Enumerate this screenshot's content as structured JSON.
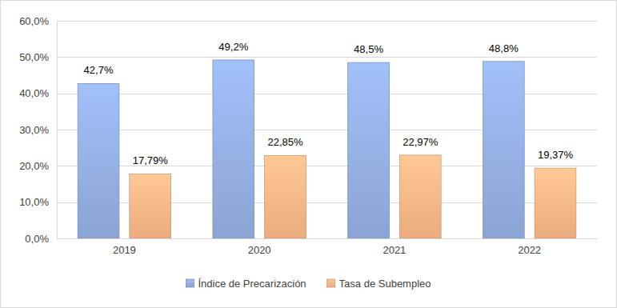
{
  "chart_data": {
    "type": "bar",
    "categories": [
      "2019",
      "2020",
      "2021",
      "2022"
    ],
    "series": [
      {
        "name": "Índice de Precarización",
        "color": "#8faadc",
        "values": [
          42.7,
          49.2,
          48.5,
          48.8
        ],
        "value_labels": [
          "42,7%",
          "49,2%",
          "48,5%",
          "48,8%"
        ]
      },
      {
        "name": "Tasa de Subempleo",
        "color": "#f4b183",
        "values": [
          17.79,
          22.85,
          22.97,
          19.37
        ],
        "value_labels": [
          "17,79%",
          "22,85%",
          "22,97%",
          "19,37%"
        ]
      }
    ],
    "ylim": [
      0,
      60
    ],
    "yticks": [
      {
        "value": 0,
        "label": "0,0%"
      },
      {
        "value": 10,
        "label": "10,0%"
      },
      {
        "value": 20,
        "label": "20,0%"
      },
      {
        "value": 30,
        "label": "30,0%"
      },
      {
        "value": 40,
        "label": "40,0%"
      },
      {
        "value": 50,
        "label": "50,0%"
      },
      {
        "value": 60,
        "label": "60,0%"
      }
    ],
    "grid": true,
    "legend": "bottom",
    "data_labels": true
  }
}
